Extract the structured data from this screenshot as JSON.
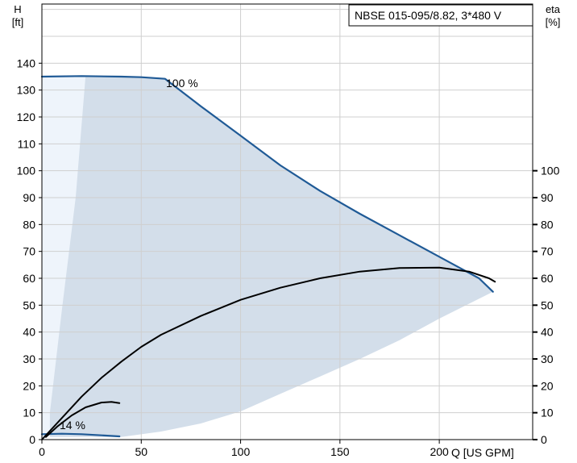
{
  "chart_data": {
    "type": "line",
    "title": "NBSE 015-095/8.82, 3*480 V",
    "xlabel": "Q [US GPM]",
    "ylabel_left": [
      "H",
      "[ft]"
    ],
    "ylabel_right": [
      "eta",
      "[%]"
    ],
    "xlim": [
      0,
      247
    ],
    "ylim": [
      0,
      162
    ],
    "x_ticks": [
      0,
      50,
      100,
      150,
      200
    ],
    "y_ticks_left": [
      0,
      10,
      20,
      30,
      40,
      50,
      60,
      70,
      80,
      90,
      100,
      110,
      120,
      130,
      140
    ],
    "y_ticks_right": [
      0,
      10,
      20,
      30,
      40,
      50,
      60,
      70,
      80,
      90,
      100
    ],
    "grid": true,
    "colors": {
      "curve_blue": "#1f5a96",
      "curve_black": "#000000",
      "region_light": "#eef4fb",
      "region_mid": "#d3deea",
      "grid": "#cfcfcf"
    },
    "annotations": [
      {
        "text": "100 %",
        "x": 63,
        "y": 136
      },
      {
        "text": "14 %",
        "x": 10,
        "y": 4
      }
    ],
    "series": [
      {
        "kind": "head",
        "label": "100 %",
        "color": "#1f5a96",
        "points": [
          [
            0,
            135
          ],
          [
            20,
            135.2
          ],
          [
            40,
            135
          ],
          [
            50,
            134.8
          ],
          [
            62,
            134.2
          ],
          [
            80,
            124
          ],
          [
            100,
            113
          ],
          [
            120,
            102
          ],
          [
            140,
            92.5
          ],
          [
            160,
            84
          ],
          [
            180,
            76
          ],
          [
            200,
            68
          ],
          [
            210,
            64
          ],
          [
            220,
            60
          ],
          [
            227,
            55
          ]
        ]
      },
      {
        "kind": "head",
        "label": "14 %",
        "color": "#1f5a96",
        "points": [
          [
            0,
            2
          ],
          [
            10,
            2.2
          ],
          [
            20,
            2
          ],
          [
            30,
            1.6
          ],
          [
            39,
            1.2
          ]
        ]
      },
      {
        "kind": "efficiency",
        "color": "#000000",
        "points": [
          [
            0,
            0
          ],
          [
            10,
            8
          ],
          [
            20,
            16
          ],
          [
            30,
            23
          ],
          [
            40,
            29
          ],
          [
            50,
            34.5
          ],
          [
            60,
            39
          ],
          [
            80,
            46
          ],
          [
            100,
            52
          ],
          [
            120,
            56.5
          ],
          [
            140,
            60
          ],
          [
            160,
            62.5
          ],
          [
            180,
            63.8
          ],
          [
            200,
            64
          ],
          [
            215,
            62.5
          ],
          [
            225,
            60
          ],
          [
            228,
            58.7
          ]
        ]
      },
      {
        "kind": "efficiency",
        "color": "#000000",
        "points": [
          [
            2,
            1
          ],
          [
            8,
            5
          ],
          [
            15,
            9
          ],
          [
            22,
            12
          ],
          [
            30,
            13.8
          ],
          [
            35,
            14
          ],
          [
            39,
            13.6
          ]
        ]
      }
    ],
    "regions": [
      {
        "name": "light-region",
        "color": "#eef4fb",
        "points": [
          [
            0,
            0
          ],
          [
            0,
            135
          ],
          [
            22,
            135.3
          ],
          [
            22,
            17
          ],
          [
            10,
            6
          ],
          [
            4,
            1.5
          ],
          [
            0,
            0
          ]
        ]
      },
      {
        "name": "operating-region",
        "color": "#d3deea",
        "points": [
          [
            4,
            1
          ],
          [
            4,
            10
          ],
          [
            10,
            48
          ],
          [
            17,
            90
          ],
          [
            22,
            135.3
          ],
          [
            40,
            135
          ],
          [
            62,
            134.2
          ],
          [
            80,
            124
          ],
          [
            100,
            113
          ],
          [
            120,
            102
          ],
          [
            140,
            92.5
          ],
          [
            160,
            84
          ],
          [
            180,
            76
          ],
          [
            200,
            68
          ],
          [
            210,
            64
          ],
          [
            220,
            60
          ],
          [
            227,
            55
          ],
          [
            200,
            45
          ],
          [
            180,
            37
          ],
          [
            160,
            30
          ],
          [
            140,
            23.5
          ],
          [
            120,
            17
          ],
          [
            100,
            10.5
          ],
          [
            80,
            6
          ],
          [
            60,
            3
          ],
          [
            40,
            1
          ],
          [
            4,
            1
          ]
        ]
      }
    ]
  }
}
